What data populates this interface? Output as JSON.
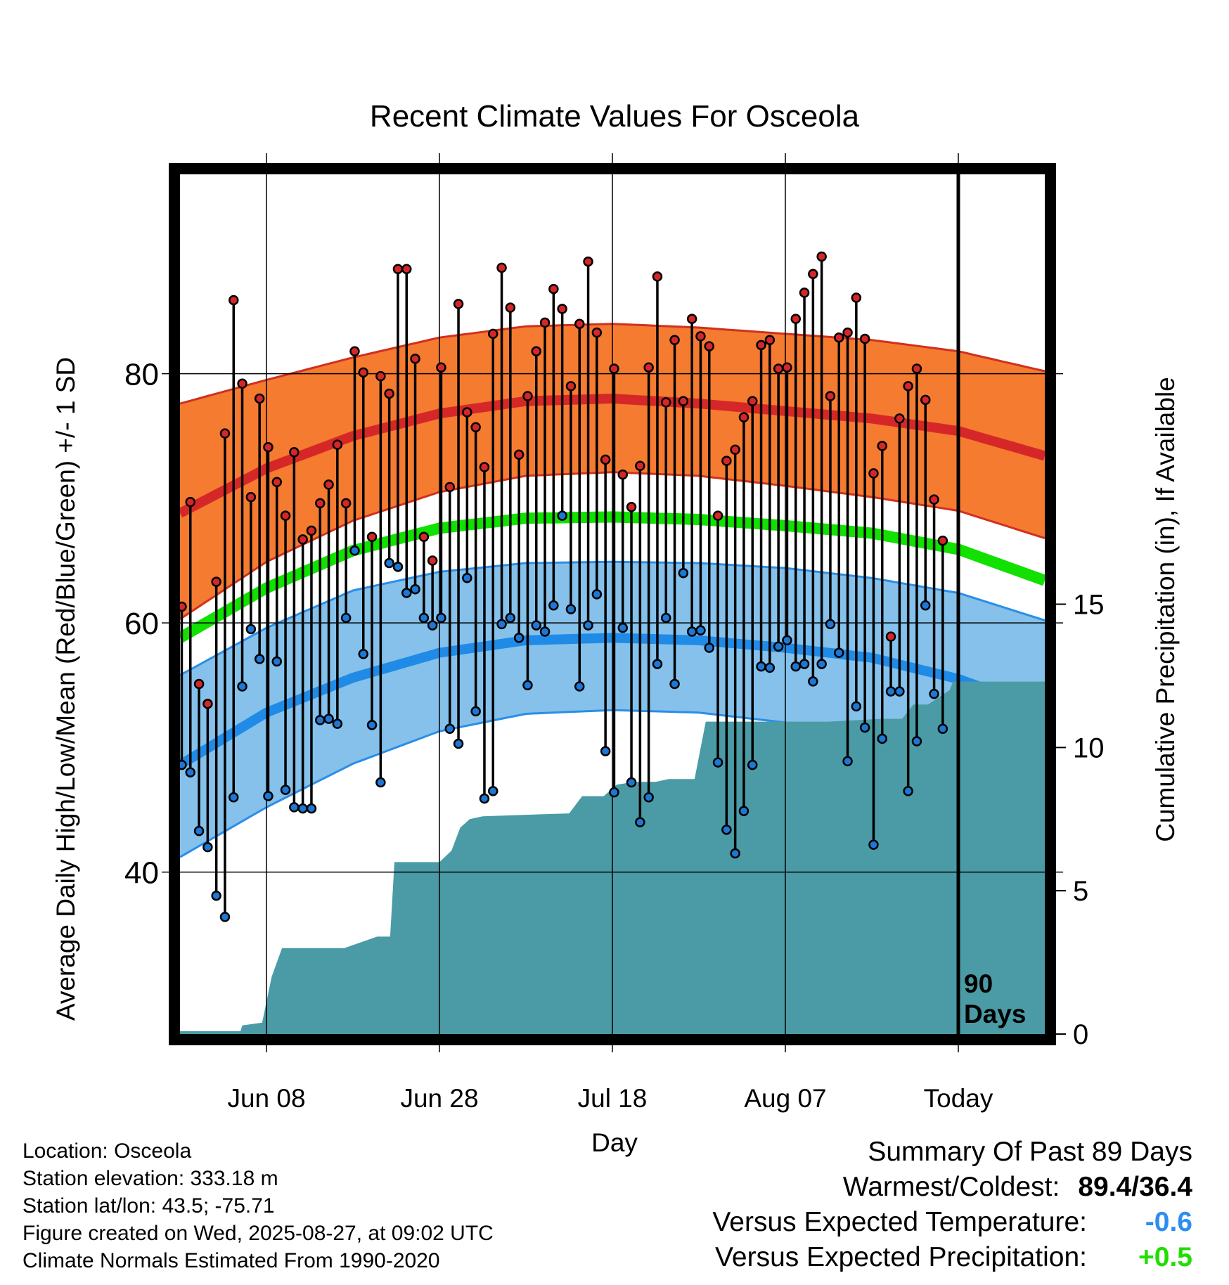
{
  "chart_data": {
    "type": "line",
    "title": "Recent Climate Values For Osceola",
    "xlabel": "Day",
    "ylabel": "Average Daily High/Low/Mean (Red/Blue/Green) +/- 1 SD",
    "y2label": "Cumulative Precipitation (in), If Available",
    "x_ticks": [
      "Jun 08",
      "Jun 28",
      "Jul 18",
      "Aug 07",
      "Today"
    ],
    "x_tick_days": [
      10,
      30,
      50,
      70,
      90
    ],
    "xlim": [
      0,
      100
    ],
    "ylim": [
      27,
      96
    ],
    "y_ticks": [
      40,
      60,
      80
    ],
    "y_minor_ticks": [
      30,
      50,
      70,
      90
    ],
    "y2lim": [
      0,
      30
    ],
    "y2_ticks": [
      0,
      5,
      10,
      15
    ],
    "grid": true,
    "today_label": "90 Days",
    "normals": {
      "days": [
        0,
        10,
        20,
        30,
        40,
        50,
        60,
        70,
        80,
        90,
        100
      ],
      "high_mean": [
        68.8,
        72.4,
        75.0,
        76.8,
        77.8,
        78.0,
        77.6,
        77.0,
        76.4,
        75.4,
        73.4
      ],
      "high_plus_sd": [
        77.6,
        79.5,
        81.3,
        82.9,
        83.8,
        84.0,
        83.7,
        83.2,
        82.7,
        81.8,
        80.2
      ],
      "high_minus_sd": [
        60.3,
        64.9,
        68.2,
        70.5,
        71.8,
        72.1,
        71.8,
        71.0,
        70.1,
        69.0,
        66.8
      ],
      "mean": [
        58.8,
        62.8,
        65.8,
        67.6,
        68.4,
        68.5,
        68.3,
        67.8,
        67.2,
        65.9,
        63.4
      ],
      "low_mean": [
        48.6,
        52.8,
        55.6,
        57.6,
        58.6,
        58.8,
        58.6,
        58.0,
        57.2,
        55.5,
        53.0
      ],
      "low_plus_sd": [
        55.8,
        59.6,
        62.6,
        64.1,
        64.8,
        64.9,
        64.8,
        64.4,
        63.6,
        62.4,
        60.2
      ],
      "low_minus_sd": [
        41.2,
        45.2,
        48.7,
        51.3,
        52.7,
        53.0,
        52.8,
        52.0,
        50.6,
        48.3,
        45.8
      ]
    },
    "series": [
      {
        "name": "High",
        "color": "#d62728",
        "values": [
          61.3,
          69.7,
          55.1,
          53.5,
          63.3,
          75.2,
          85.9,
          79.2,
          70.1,
          78.0,
          74.1,
          71.3,
          68.6,
          73.7,
          66.7,
          67.4,
          69.6,
          71.1,
          74.3,
          69.6,
          81.8,
          80.1,
          66.9,
          79.8,
          78.4,
          88.4,
          88.4,
          81.2,
          66.9,
          65.0,
          80.5,
          70.9,
          85.6,
          76.9,
          75.7,
          72.5,
          83.2,
          88.5,
          85.3,
          73.5,
          78.2,
          81.8,
          84.1,
          86.8,
          85.2,
          79.0,
          84.0,
          89.0,
          83.3,
          73.1,
          80.4,
          71.9,
          69.3,
          72.6,
          80.5,
          87.8,
          77.7,
          82.7,
          77.8,
          84.4,
          83.0,
          82.2,
          68.6,
          73.0,
          73.9,
          76.5,
          77.8,
          82.3,
          82.7,
          80.4,
          80.5,
          84.4,
          86.5,
          88.0,
          89.4,
          78.2,
          82.9,
          83.3,
          86.1,
          82.8,
          72.0,
          74.2,
          58.9,
          76.4,
          79.0,
          80.4,
          77.9,
          69.9,
          66.6
        ]
      },
      {
        "name": "Low",
        "color": "#1f77d4",
        "values": [
          48.6,
          48.0,
          43.3,
          42.0,
          38.1,
          36.4,
          46.0,
          54.9,
          59.5,
          57.1,
          46.1,
          56.9,
          46.6,
          45.2,
          45.1,
          45.1,
          52.2,
          52.3,
          51.9,
          60.4,
          65.8,
          57.5,
          51.8,
          47.2,
          64.8,
          64.5,
          62.4,
          62.7,
          60.4,
          59.8,
          60.4,
          51.5,
          50.3,
          63.6,
          52.9,
          45.9,
          46.5,
          59.9,
          60.4,
          58.8,
          55.0,
          59.8,
          59.3,
          61.4,
          68.6,
          61.1,
          54.9,
          59.8,
          62.3,
          49.7,
          46.4,
          59.6,
          47.2,
          44.0,
          46.0,
          56.7,
          60.4,
          55.1,
          64.0,
          59.3,
          59.4,
          58.0,
          48.8,
          43.4,
          41.5,
          44.9,
          48.6,
          56.5,
          56.4,
          58.1,
          58.6,
          56.5,
          56.7,
          55.3,
          56.7,
          59.9,
          57.6,
          48.9,
          53.3,
          51.6,
          42.2,
          50.7,
          54.5,
          54.5,
          46.5,
          50.5,
          61.4,
          54.3,
          51.5
        ]
      }
    ],
    "precipitation": {
      "days": [
        0,
        1.8,
        7,
        7.2,
        9.5,
        10.6,
        11.8,
        13,
        19,
        22.8,
        24.3,
        24.8,
        30,
        31.4,
        32.4,
        33.5,
        35,
        45,
        46.5,
        49,
        50.5,
        52.5,
        55,
        56.5,
        59.5,
        60.8,
        67,
        75,
        81,
        82,
        83.5,
        84.8,
        86.5,
        89,
        89.4,
        100
      ],
      "values": [
        0.1,
        0.1,
        0.1,
        0.3,
        0.4,
        2.0,
        3.0,
        3.0,
        3.0,
        3.4,
        3.4,
        6.0,
        6.0,
        6.4,
        7.2,
        7.5,
        7.6,
        7.7,
        8.3,
        8.3,
        8.7,
        8.8,
        8.8,
        8.9,
        8.9,
        10.9,
        10.9,
        10.9,
        11.0,
        11.0,
        11.0,
        11.5,
        11.5,
        12.0,
        12.3,
        12.3
      ]
    }
  },
  "info": {
    "location": "Location: Osceola",
    "elevation": "Station elevation: 333.18 m",
    "latlon": "Station lat/lon: 43.5; -75.71",
    "created": "Figure created on Wed, 2025-08-27, at 09:02 UTC",
    "normals": "Climate Normals Estimated From 1990-2020"
  },
  "summary": {
    "title": "Summary Of Past 89 Days",
    "warm_label": "Warmest/Coldest:",
    "warm_value": "89.4/36.4",
    "temp_label": "Versus Expected Temperature:",
    "temp_value": "-0.6",
    "temp_color": "#2b8ef0",
    "precip_label": "Versus Expected Precipitation:",
    "precip_value": "+0.5",
    "precip_color": "#22dd00"
  },
  "colors": {
    "high_band": "#f47b30",
    "high_line": "#d62728",
    "low_band": "#85c1ea",
    "low_line": "#1f8be6",
    "mean_line": "#11e000",
    "precip_fill": "#4a9ba5"
  }
}
